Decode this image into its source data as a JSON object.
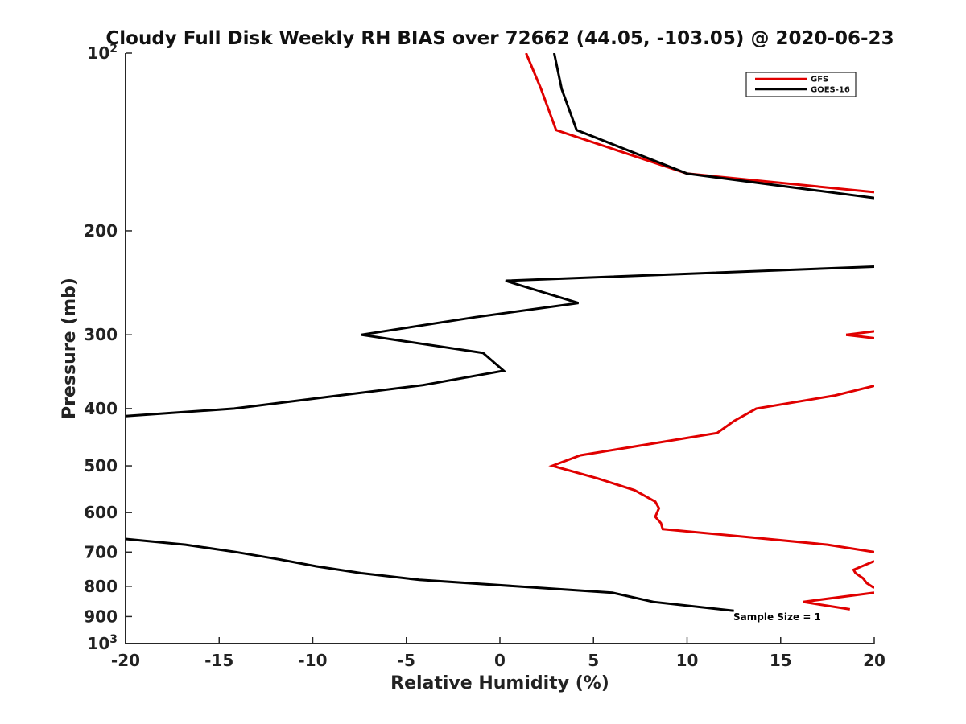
{
  "chart_data": {
    "type": "line",
    "title": "Cloudy Full Disk Weekly RH BIAS over 72662 (44.05, -103.05) @ 2020-06-23",
    "xlabel": "Relative Humidity (%)",
    "ylabel": "Pressure (mb)",
    "xlim": [
      -20,
      20
    ],
    "ylim": [
      100,
      1000
    ],
    "y_scale": "log",
    "y_reversed": true,
    "x_ticks": [
      "-20",
      "-15",
      "-10",
      "-5",
      "0",
      "5",
      "10",
      "15",
      "20"
    ],
    "y_ticks": [
      {
        "value": 100,
        "base": "10",
        "exp": "2"
      },
      {
        "value": 200,
        "label": "200"
      },
      {
        "value": 300,
        "label": "300"
      },
      {
        "value": 400,
        "label": "400"
      },
      {
        "value": 500,
        "label": "500"
      },
      {
        "value": 600,
        "label": "600"
      },
      {
        "value": 700,
        "label": "700"
      },
      {
        "value": 800,
        "label": "800"
      },
      {
        "value": 900,
        "label": "900"
      },
      {
        "value": 1000,
        "base": "10",
        "exp": "3"
      }
    ],
    "legend_position": "top-right",
    "annotation": "Sample Size = 1",
    "series": [
      {
        "name": "GFS",
        "color": "#e00000",
        "segments": [
          [
            [
              1.4,
              100
            ],
            [
              2.2,
              115
            ],
            [
              3.0,
              135
            ],
            [
              10.0,
              160
            ],
            [
              20.0,
              172
            ]
          ],
          [
            [
              18.5,
              300
            ],
            [
              20.0,
              296
            ]
          ],
          [
            [
              18.5,
              300
            ],
            [
              20.0,
              304
            ]
          ],
          [
            [
              20.0,
              366
            ],
            [
              17.9,
              380
            ],
            [
              13.7,
              400
            ],
            [
              12.5,
              420
            ],
            [
              11.6,
              440
            ],
            [
              4.3,
              480
            ],
            [
              2.8,
              500
            ],
            [
              5.2,
              525
            ],
            [
              7.2,
              550
            ],
            [
              8.3,
              575
            ],
            [
              8.5,
              590
            ],
            [
              8.3,
              610
            ],
            [
              8.6,
              625
            ],
            [
              8.7,
              640
            ],
            [
              17.5,
              680
            ],
            [
              20.0,
              700
            ]
          ],
          [
            [
              20.0,
              725
            ],
            [
              18.9,
              750
            ],
            [
              19.0,
              760
            ],
            [
              19.4,
              775
            ],
            [
              19.6,
              790
            ],
            [
              20.0,
              805
            ]
          ],
          [
            [
              20.0,
              820
            ],
            [
              16.2,
              850
            ],
            [
              18.7,
              875
            ]
          ]
        ]
      },
      {
        "name": "GOES-16",
        "color": "#000000",
        "segments": [
          [
            [
              2.9,
              100
            ],
            [
              3.3,
              115
            ],
            [
              4.1,
              135
            ],
            [
              10.0,
              160
            ],
            [
              20.0,
              176
            ]
          ],
          [
            [
              20.0,
              230
            ],
            [
              0.3,
              243
            ],
            [
              4.2,
              265
            ],
            [
              -1.3,
              280
            ],
            [
              -7.4,
              300
            ],
            [
              -0.9,
              322
            ],
            [
              0.2,
              345
            ],
            [
              -4.1,
              365
            ],
            [
              -8.6,
              380
            ],
            [
              -14.2,
              400
            ],
            [
              -20.0,
              412
            ]
          ],
          [
            [
              -20.0,
              665
            ],
            [
              -16.8,
              680
            ],
            [
              -14.1,
              700
            ],
            [
              -11.8,
              720
            ],
            [
              -9.8,
              740
            ],
            [
              -7.4,
              760
            ],
            [
              -4.3,
              780
            ],
            [
              6.0,
              820
            ],
            [
              8.2,
              850
            ],
            [
              12.5,
              880
            ]
          ]
        ]
      }
    ]
  }
}
